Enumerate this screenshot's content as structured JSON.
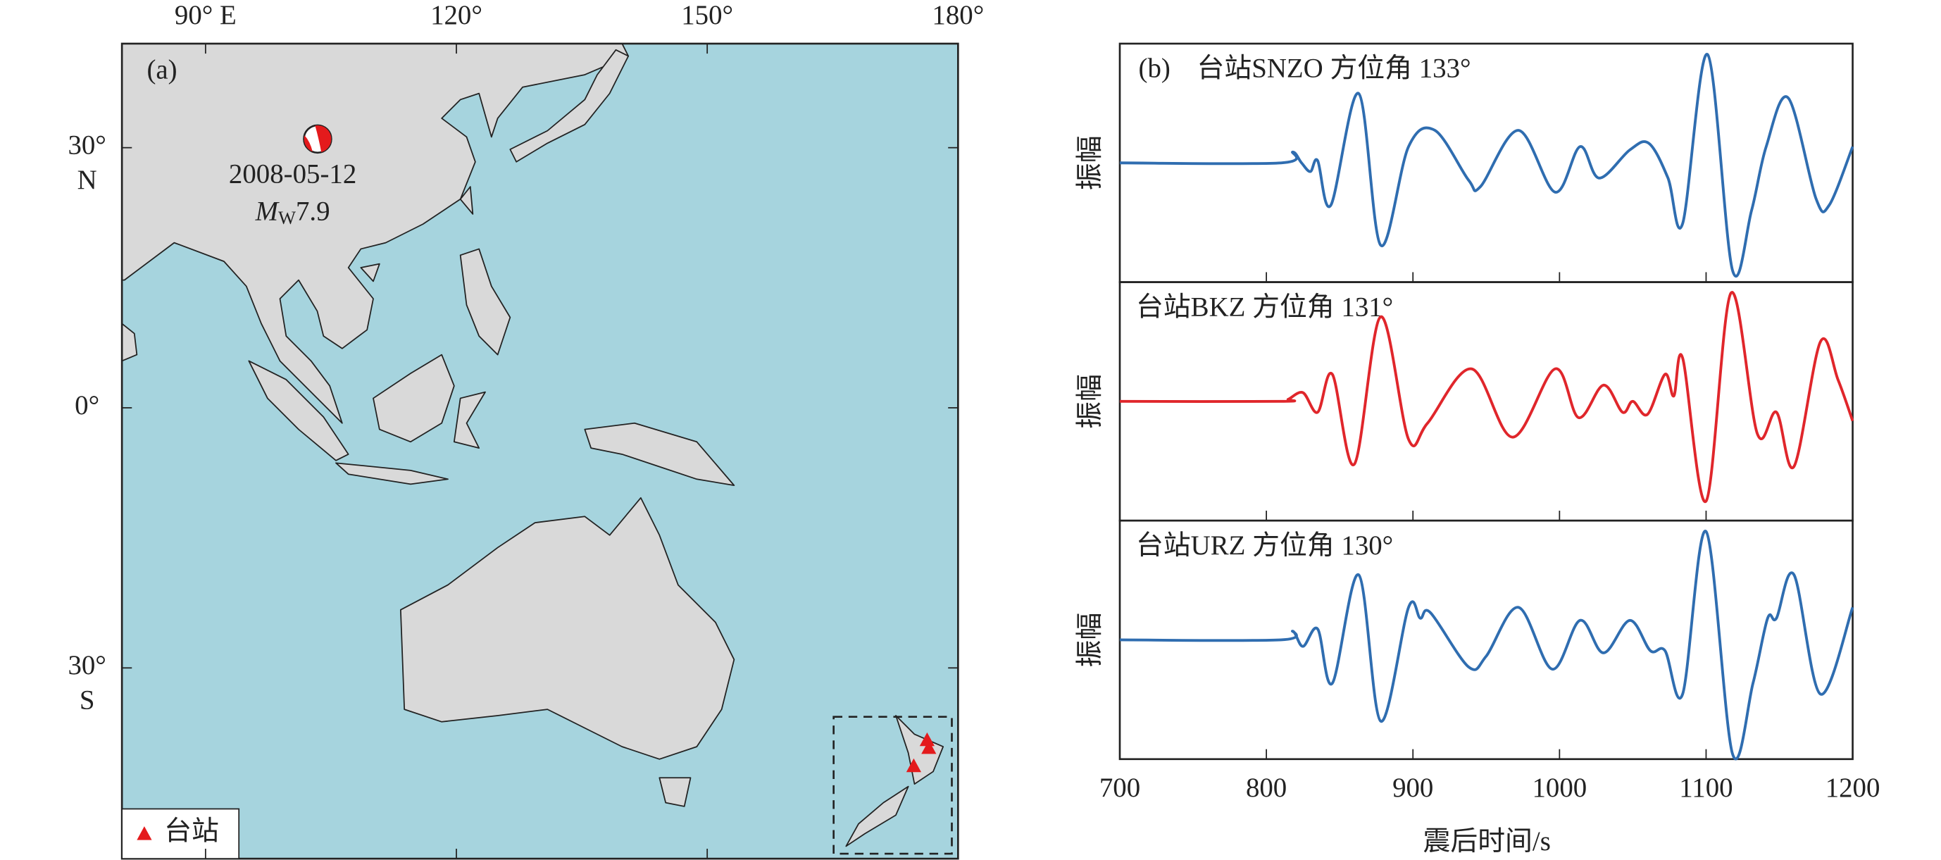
{
  "chart_data": [
    {
      "type": "map",
      "panel_label": "(a)",
      "xlim": [
        80,
        180
      ],
      "ylim": [
        -52,
        42
      ],
      "xticks": [
        {
          "value": 90,
          "label": "90° E"
        },
        {
          "value": 120,
          "label": "120°"
        },
        {
          "value": 150,
          "label": "150°"
        },
        {
          "value": 180,
          "label": "180°"
        }
      ],
      "yticks": [
        {
          "value": 30,
          "label": "30°",
          "hemisphere": "N"
        },
        {
          "value": 0,
          "label": "0°"
        },
        {
          "value": -30,
          "label": "30°",
          "hemisphere": "S"
        }
      ],
      "event": {
        "lon": 103.4,
        "lat": 31.0,
        "date": "2008-05-12",
        "magnitude_symbol": "M",
        "magnitude_subscript": "W",
        "magnitude": 7.9
      },
      "stations": [
        {
          "lon": 174.7,
          "lat": -41.3
        },
        {
          "lon": 176.5,
          "lat": -39.2
        },
        {
          "lon": 176.3,
          "lat": -38.3
        }
      ],
      "station_color": "#e41a1c",
      "legend_label": "台站"
    },
    {
      "type": "line",
      "panel_label": "(b)",
      "xlim": [
        700,
        1200
      ],
      "xticks": [
        700,
        800,
        900,
        1000,
        1100,
        1200
      ],
      "xlabel": "震后时间/s",
      "ylabel": "振幅",
      "ylim": [
        -1.1,
        1.1
      ],
      "series": [
        {
          "name": "台站SNZO 方位角 133°",
          "color": "#2f6db0",
          "x": [
            700,
            810,
            818,
            824,
            830,
            835,
            844,
            863,
            878,
            897,
            915,
            938,
            946,
            972,
            997,
            1014,
            1027,
            1048,
            1061,
            1074,
            1084,
            1101,
            1118,
            1131,
            1141,
            1156,
            1175,
            1184,
            1200
          ],
          "values": [
            0,
            0,
            0.1,
            0.0,
            -0.08,
            0.02,
            -0.39,
            0.64,
            -0.76,
            0.15,
            0.3,
            -0.16,
            -0.22,
            0.3,
            -0.27,
            0.15,
            -0.14,
            0.12,
            0.18,
            -0.14,
            -0.56,
            1.0,
            -0.99,
            -0.44,
            0.15,
            0.6,
            -0.33,
            -0.39,
            0.15
          ]
        },
        {
          "name": "台站BKZ 方位角 131°",
          "color": "#e0262b",
          "x": [
            700,
            810,
            815,
            825,
            835,
            845,
            860,
            878,
            897,
            910,
            940,
            968,
            997,
            1013,
            1030,
            1043,
            1050,
            1060,
            1072,
            1078,
            1084,
            1100,
            1117,
            1135,
            1148,
            1160,
            1178,
            1190,
            1200
          ],
          "values": [
            0,
            0,
            0.02,
            0.08,
            -0.1,
            0.25,
            -0.58,
            0.78,
            -0.35,
            -0.2,
            0.3,
            -0.33,
            0.3,
            -0.15,
            0.15,
            -0.1,
            0.0,
            -0.12,
            0.25,
            0.05,
            0.4,
            -0.92,
            1.0,
            -0.3,
            -0.1,
            -0.6,
            0.55,
            0.2,
            -0.18
          ]
        },
        {
          "name": "台站URZ 方位角 130°",
          "color": "#2f6db0",
          "x": [
            700,
            810,
            818,
            825,
            835,
            845,
            863,
            878,
            897,
            905,
            912,
            938,
            950,
            972,
            995,
            1014,
            1030,
            1048,
            1062,
            1072,
            1084,
            1100,
            1118,
            1132,
            1142,
            1148,
            1160,
            1178,
            1200
          ],
          "values": [
            0,
            0,
            0.08,
            -0.06,
            0.1,
            -0.4,
            0.6,
            -0.75,
            0.3,
            0.2,
            0.25,
            -0.25,
            -0.15,
            0.3,
            -0.27,
            0.18,
            -0.12,
            0.18,
            -0.1,
            -0.1,
            -0.5,
            1.0,
            -1.05,
            -0.4,
            0.2,
            0.2,
            0.6,
            -0.5,
            0.3
          ]
        }
      ]
    }
  ]
}
